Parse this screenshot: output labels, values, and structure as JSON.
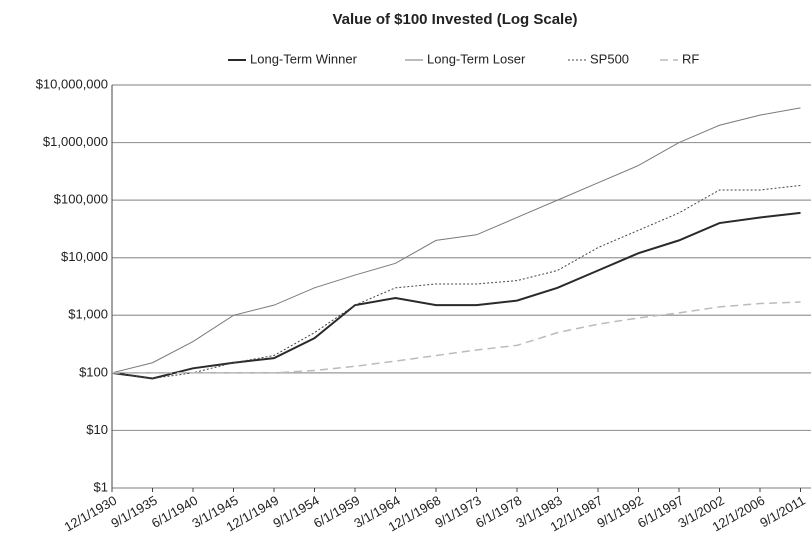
{
  "chart_data": {
    "type": "line",
    "title": "Value of $100 Invested (Log Scale)",
    "categories": [
      "12/1/1930",
      "9/1/1935",
      "6/1/1940",
      "3/1/1945",
      "12/1/1949",
      "9/1/1954",
      "6/1/1959",
      "3/1/1964",
      "12/1/1968",
      "9/1/1973",
      "6/1/1978",
      "3/1/1983",
      "12/1/1987",
      "9/1/1992",
      "6/1/1997",
      "3/1/2002",
      "12/1/2006",
      "9/1/2011"
    ],
    "series": [
      {
        "name": "Long-Term Winner",
        "color": "#2a2a2a",
        "width": 2,
        "dash": "solid",
        "values": [
          100,
          80,
          120,
          150,
          180,
          400,
          1500,
          2000,
          1500,
          1500,
          1800,
          3000,
          6000,
          12000,
          20000,
          40000,
          50000,
          60000
        ]
      },
      {
        "name": "Long-Term Loser",
        "color": "#7a7a7a",
        "width": 1,
        "dash": "solid",
        "values": [
          100,
          150,
          350,
          1000,
          1500,
          3000,
          5000,
          8000,
          20000,
          25000,
          50000,
          100000,
          200000,
          400000,
          1000000,
          2000000,
          3000000,
          4000000
        ]
      },
      {
        "name": "SP500",
        "color": "#444444",
        "width": 1,
        "dash": "dotted",
        "values": [
          100,
          80,
          100,
          150,
          200,
          500,
          1500,
          3000,
          3500,
          3500,
          4000,
          6000,
          15000,
          30000,
          60000,
          150000,
          150000,
          180000
        ]
      },
      {
        "name": "RF",
        "color": "#bbbbbb",
        "width": 1.5,
        "dash": "dashed",
        "values": [
          100,
          100,
          100,
          100,
          100,
          110,
          130,
          160,
          200,
          250,
          300,
          500,
          700,
          900,
          1100,
          1400,
          1600,
          1700
        ]
      }
    ],
    "log_scale": true,
    "ylim": [
      1,
      10000000
    ],
    "yticks": [
      {
        "value": 1,
        "label": "$1"
      },
      {
        "value": 10,
        "label": "$10"
      },
      {
        "value": 100,
        "label": "$100"
      },
      {
        "value": 1000,
        "label": "$1,000"
      },
      {
        "value": 10000,
        "label": "$10,000"
      },
      {
        "value": 100000,
        "label": "$100,000"
      },
      {
        "value": 1000000,
        "label": "$1,000,000"
      },
      {
        "value": 10000000,
        "label": "$10,000,000"
      }
    ],
    "grid": true,
    "legend": "top"
  }
}
